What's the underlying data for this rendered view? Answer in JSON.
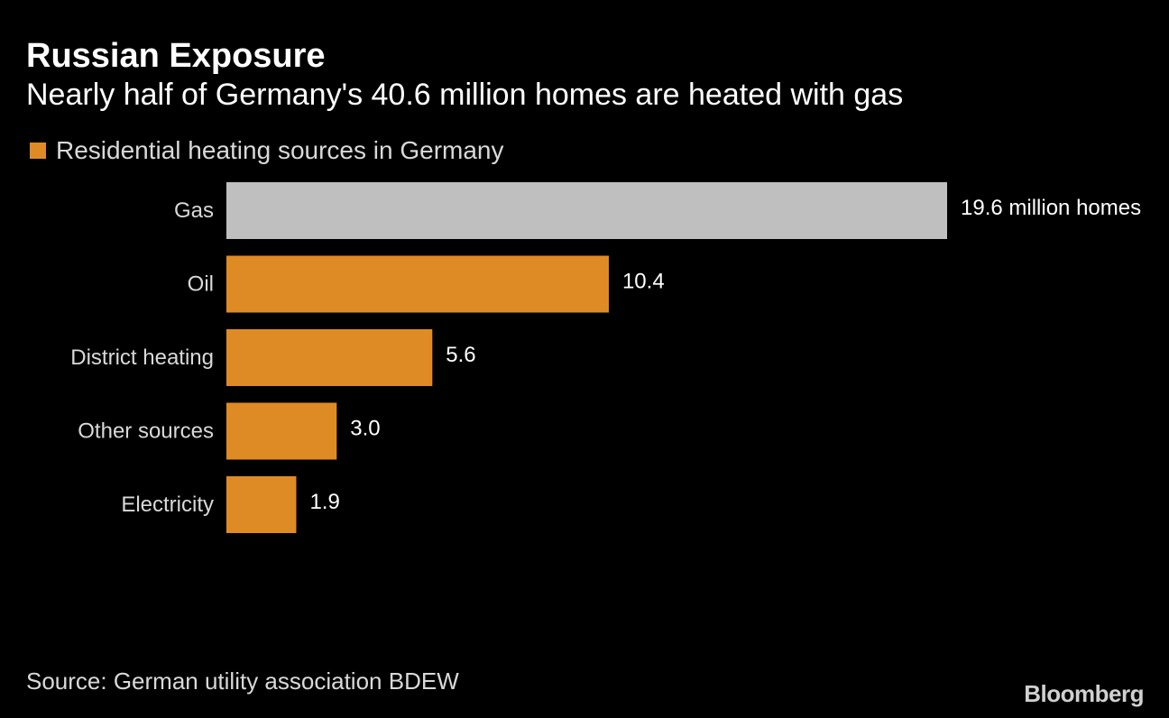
{
  "chart_data": {
    "type": "bar",
    "orientation": "horizontal",
    "title": "Russian Exposure",
    "subtitle": "Nearly half of Germany's 40.6 million homes are heated with gas",
    "legend": "Residential heating sources in Germany",
    "categories": [
      "Gas",
      "Oil",
      "District heating",
      "Other sources",
      "Electricity"
    ],
    "values": [
      19.6,
      10.4,
      5.6,
      3.0,
      1.9
    ],
    "value_labels": [
      "19.6 million homes",
      "10.4",
      "5.6",
      "3.0",
      "1.9"
    ],
    "highlight_index": 0,
    "xlim": [
      0,
      19.6
    ],
    "grid": false,
    "legend_position": "top-left"
  },
  "colors": {
    "background": "#000000",
    "bar": "#df8b25",
    "highlight_bar": "#bfbfbf",
    "text": "#ffffff",
    "muted_text": "#d9d9d9"
  },
  "source": "Source: German utility association BDEW",
  "brand": "Bloomberg"
}
